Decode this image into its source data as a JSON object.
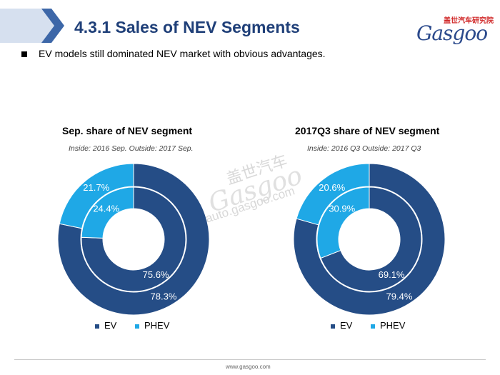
{
  "header": {
    "title": "4.3.1 Sales of NEV Segments",
    "logo_cn": "盖世汽车研究院",
    "logo_en": "Gasgoo"
  },
  "bullet": "EV models still dominated NEV market with obvious advantages.",
  "watermark": {
    "cn": "盖世汽车",
    "en": "Gasgoo",
    "url": "auto.gasgoo.com"
  },
  "footer": "www.gasgoo.com",
  "colors": {
    "header_blue": "#1f3f78",
    "ev": "#254d86",
    "phev": "#1fa8e6",
    "chevron_light": "#c9d6ea",
    "chevron_dark": "#5a7fb8"
  },
  "chart_data": [
    {
      "type": "pie",
      "style": "double-donut",
      "title": "Sep. share of NEV segment",
      "subtitle": "Inside: 2016 Sep.  Outside: 2017 Sep.",
      "categories": [
        "EV",
        "PHEV"
      ],
      "series": [
        {
          "name": "2016 Sep.",
          "ring": "inner",
          "values": [
            75.6,
            24.4
          ],
          "labels": [
            "75.6%",
            "24.4%"
          ]
        },
        {
          "name": "2017 Sep.",
          "ring": "outer",
          "values": [
            78.3,
            21.7
          ],
          "labels": [
            "78.3%",
            "21.7%"
          ]
        }
      ],
      "legend": [
        "EV",
        "PHEV"
      ],
      "legend_position": "bottom"
    },
    {
      "type": "pie",
      "style": "double-donut",
      "title": "2017Q3 share of NEV segment",
      "subtitle": "Inside: 2016 Q3  Outside: 2017 Q3",
      "categories": [
        "EV",
        "PHEV"
      ],
      "series": [
        {
          "name": "2016 Q3",
          "ring": "inner",
          "values": [
            69.1,
            30.9
          ],
          "labels": [
            "69.1%",
            "30.9%"
          ]
        },
        {
          "name": "2017 Q3",
          "ring": "outer",
          "values": [
            79.4,
            20.6
          ],
          "labels": [
            "79.4%",
            "20.6%"
          ]
        }
      ],
      "legend": [
        "EV",
        "PHEV"
      ],
      "legend_position": "bottom"
    }
  ]
}
